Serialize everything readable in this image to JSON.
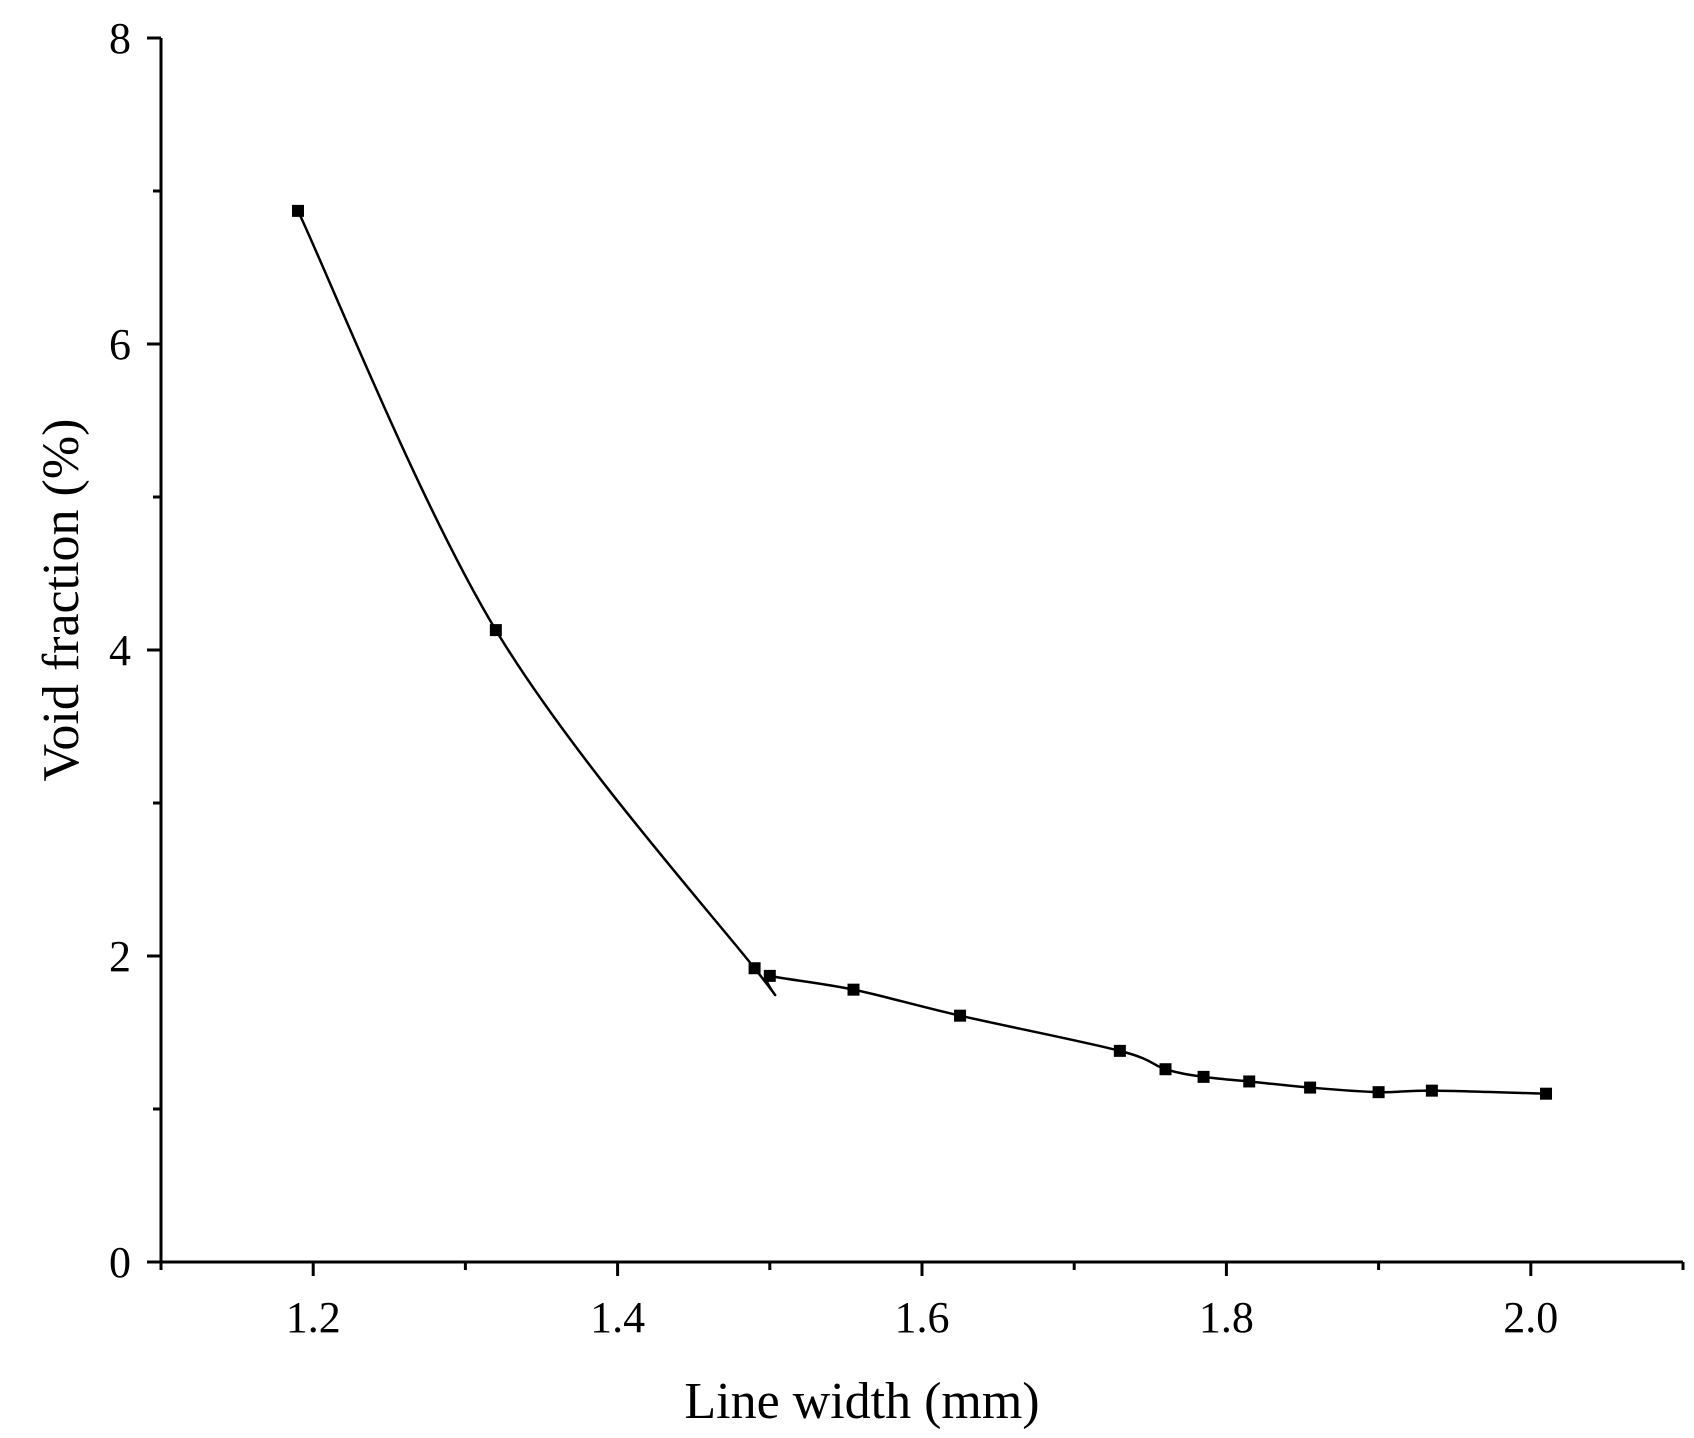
{
  "chart_data": {
    "type": "line",
    "title": "",
    "xlabel": "Line width (mm)",
    "ylabel": "Void fraction (%)",
    "xlim": [
      1.1,
      2.1
    ],
    "ylim": [
      0,
      8
    ],
    "x_ticks": [
      1.2,
      1.4,
      1.6,
      1.8,
      2.0
    ],
    "x_tick_labels": [
      "1.2",
      "1.4",
      "1.6",
      "1.8",
      "2.0"
    ],
    "x_minor_ticks": [
      1.1,
      1.3,
      1.5,
      1.7,
      1.9,
      2.1
    ],
    "y_ticks": [
      0,
      2,
      4,
      6,
      8
    ],
    "y_tick_labels": [
      "0",
      "2",
      "4",
      "6",
      "8"
    ],
    "y_minor_ticks": [
      1,
      3,
      5,
      7
    ],
    "grid": false,
    "legend": "none",
    "marker": "square",
    "smooth": true,
    "colors": {
      "line": "#000000",
      "marker": "#000000",
      "axis": "#000000"
    },
    "series": [
      {
        "x": [
          1.19,
          1.32,
          1.49,
          1.5,
          1.555,
          1.625,
          1.73,
          1.76,
          1.785,
          1.815,
          1.855,
          1.9,
          1.935,
          2.01
        ],
        "y": [
          6.87,
          4.13,
          1.92,
          1.87,
          1.78,
          1.61,
          1.38,
          1.26,
          1.21,
          1.18,
          1.14,
          1.11,
          1.12,
          1.1
        ]
      }
    ]
  }
}
